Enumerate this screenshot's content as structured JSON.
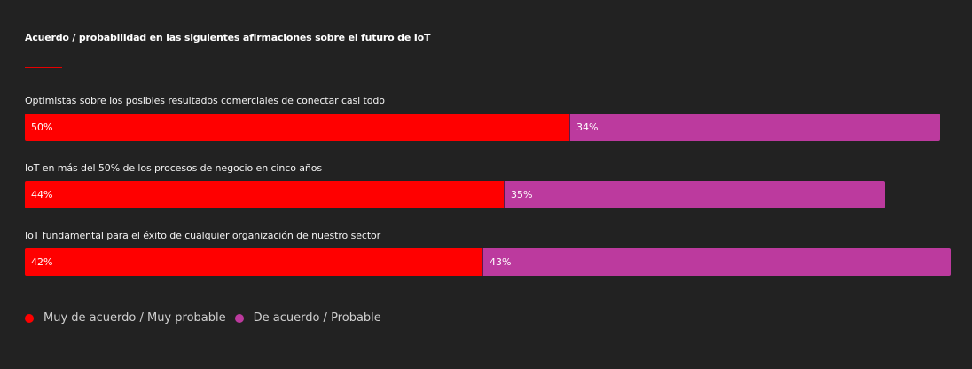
{
  "colors": {
    "background": "#222222",
    "accent": "#e60000",
    "series_a": "#ff0000",
    "series_b": "#bc3a9e"
  },
  "chart_data": {
    "type": "bar",
    "orientation": "horizontal",
    "stacked": true,
    "title": "Acuerdo / probabilidad en las siguientes afirmaciones sobre el futuro de IoT",
    "categories": [
      "Optimistas sobre los posibles resultados comerciales de conectar casi todo",
      "IoT en más del 50% de los procesos de negocio en cinco años",
      "IoT fundamental para el éxito de cualquier organización de nuestro sector"
    ],
    "series": [
      {
        "name": "Muy de acuerdo / Muy probable",
        "values": [
          50,
          44,
          42
        ],
        "labels": [
          "50%",
          "44%",
          "42%"
        ]
      },
      {
        "name": "De acuerdo / Probable",
        "values": [
          34,
          35,
          43
        ],
        "labels": [
          "34%",
          "35%",
          "43%"
        ]
      }
    ],
    "xlim": [
      0,
      100
    ],
    "unit": "%",
    "grid": false,
    "legend_position": "bottom-left"
  }
}
